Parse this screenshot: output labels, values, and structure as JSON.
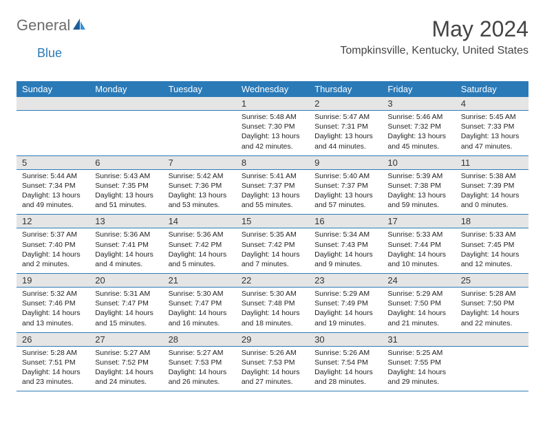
{
  "logo": {
    "text1": "General",
    "text2": "Blue"
  },
  "title": "May 2024",
  "location": "Tompkinsville, Kentucky, United States",
  "colors": {
    "header_bar": "#2a7ab8",
    "daynum_bg": "#e5e5e5",
    "rule": "#2a7ab8",
    "text": "#222222"
  },
  "weekdays": [
    "Sunday",
    "Monday",
    "Tuesday",
    "Wednesday",
    "Thursday",
    "Friday",
    "Saturday"
  ],
  "weeks": [
    [
      null,
      null,
      null,
      {
        "n": "1",
        "sr": "5:48 AM",
        "ss": "7:30 PM",
        "dl": "13 hours and 42 minutes."
      },
      {
        "n": "2",
        "sr": "5:47 AM",
        "ss": "7:31 PM",
        "dl": "13 hours and 44 minutes."
      },
      {
        "n": "3",
        "sr": "5:46 AM",
        "ss": "7:32 PM",
        "dl": "13 hours and 45 minutes."
      },
      {
        "n": "4",
        "sr": "5:45 AM",
        "ss": "7:33 PM",
        "dl": "13 hours and 47 minutes."
      }
    ],
    [
      {
        "n": "5",
        "sr": "5:44 AM",
        "ss": "7:34 PM",
        "dl": "13 hours and 49 minutes."
      },
      {
        "n": "6",
        "sr": "5:43 AM",
        "ss": "7:35 PM",
        "dl": "13 hours and 51 minutes."
      },
      {
        "n": "7",
        "sr": "5:42 AM",
        "ss": "7:36 PM",
        "dl": "13 hours and 53 minutes."
      },
      {
        "n": "8",
        "sr": "5:41 AM",
        "ss": "7:37 PM",
        "dl": "13 hours and 55 minutes."
      },
      {
        "n": "9",
        "sr": "5:40 AM",
        "ss": "7:37 PM",
        "dl": "13 hours and 57 minutes."
      },
      {
        "n": "10",
        "sr": "5:39 AM",
        "ss": "7:38 PM",
        "dl": "13 hours and 59 minutes."
      },
      {
        "n": "11",
        "sr": "5:38 AM",
        "ss": "7:39 PM",
        "dl": "14 hours and 0 minutes."
      }
    ],
    [
      {
        "n": "12",
        "sr": "5:37 AM",
        "ss": "7:40 PM",
        "dl": "14 hours and 2 minutes."
      },
      {
        "n": "13",
        "sr": "5:36 AM",
        "ss": "7:41 PM",
        "dl": "14 hours and 4 minutes."
      },
      {
        "n": "14",
        "sr": "5:36 AM",
        "ss": "7:42 PM",
        "dl": "14 hours and 5 minutes."
      },
      {
        "n": "15",
        "sr": "5:35 AM",
        "ss": "7:42 PM",
        "dl": "14 hours and 7 minutes."
      },
      {
        "n": "16",
        "sr": "5:34 AM",
        "ss": "7:43 PM",
        "dl": "14 hours and 9 minutes."
      },
      {
        "n": "17",
        "sr": "5:33 AM",
        "ss": "7:44 PM",
        "dl": "14 hours and 10 minutes."
      },
      {
        "n": "18",
        "sr": "5:33 AM",
        "ss": "7:45 PM",
        "dl": "14 hours and 12 minutes."
      }
    ],
    [
      {
        "n": "19",
        "sr": "5:32 AM",
        "ss": "7:46 PM",
        "dl": "14 hours and 13 minutes."
      },
      {
        "n": "20",
        "sr": "5:31 AM",
        "ss": "7:47 PM",
        "dl": "14 hours and 15 minutes."
      },
      {
        "n": "21",
        "sr": "5:30 AM",
        "ss": "7:47 PM",
        "dl": "14 hours and 16 minutes."
      },
      {
        "n": "22",
        "sr": "5:30 AM",
        "ss": "7:48 PM",
        "dl": "14 hours and 18 minutes."
      },
      {
        "n": "23",
        "sr": "5:29 AM",
        "ss": "7:49 PM",
        "dl": "14 hours and 19 minutes."
      },
      {
        "n": "24",
        "sr": "5:29 AM",
        "ss": "7:50 PM",
        "dl": "14 hours and 21 minutes."
      },
      {
        "n": "25",
        "sr": "5:28 AM",
        "ss": "7:50 PM",
        "dl": "14 hours and 22 minutes."
      }
    ],
    [
      {
        "n": "26",
        "sr": "5:28 AM",
        "ss": "7:51 PM",
        "dl": "14 hours and 23 minutes."
      },
      {
        "n": "27",
        "sr": "5:27 AM",
        "ss": "7:52 PM",
        "dl": "14 hours and 24 minutes."
      },
      {
        "n": "28",
        "sr": "5:27 AM",
        "ss": "7:53 PM",
        "dl": "14 hours and 26 minutes."
      },
      {
        "n": "29",
        "sr": "5:26 AM",
        "ss": "7:53 PM",
        "dl": "14 hours and 27 minutes."
      },
      {
        "n": "30",
        "sr": "5:26 AM",
        "ss": "7:54 PM",
        "dl": "14 hours and 28 minutes."
      },
      {
        "n": "31",
        "sr": "5:25 AM",
        "ss": "7:55 PM",
        "dl": "14 hours and 29 minutes."
      },
      null
    ]
  ],
  "labels": {
    "sunrise": "Sunrise:",
    "sunset": "Sunset:",
    "daylight": "Daylight:"
  }
}
